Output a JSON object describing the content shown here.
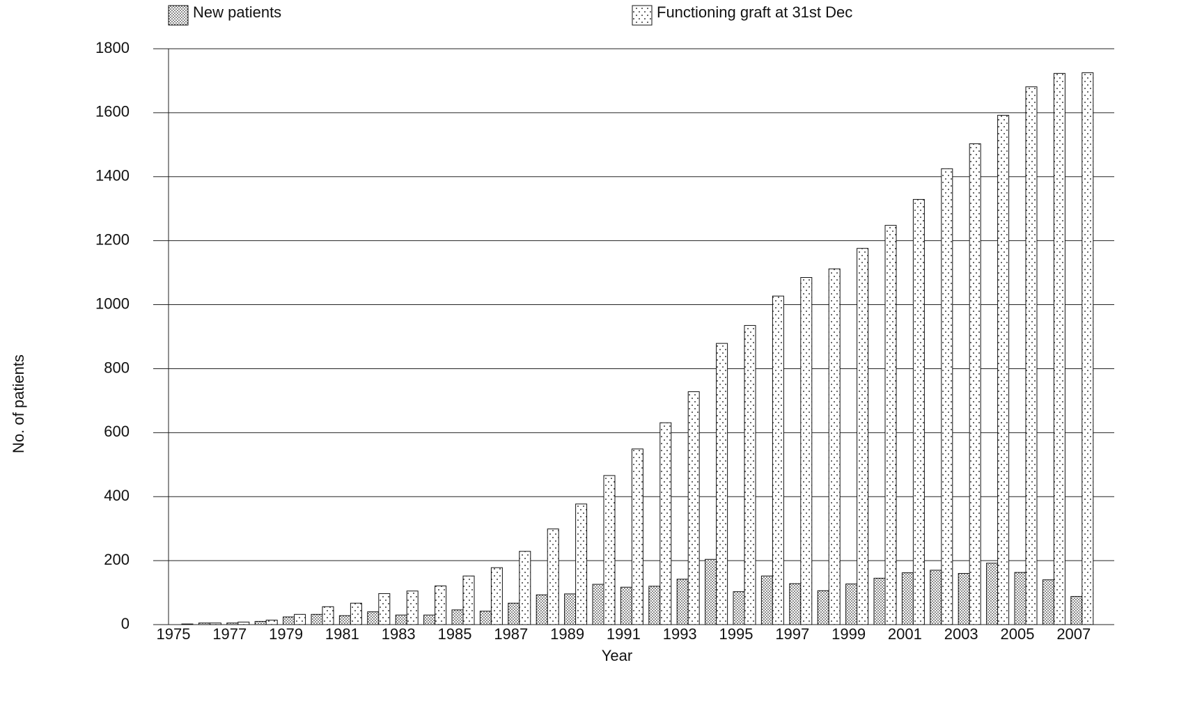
{
  "chart_data": {
    "type": "bar",
    "x_label": "Year",
    "y_label": "No. of patients",
    "categories": [
      "1975",
      null,
      "1977",
      null,
      "1979",
      null,
      "1981",
      null,
      "1983",
      null,
      "1985",
      null,
      "1987",
      null,
      "1989",
      null,
      "1991",
      null,
      "1993",
      null,
      "1995",
      null,
      "1997",
      null,
      "1999",
      null,
      "2001",
      null,
      "2003",
      null,
      "2005",
      null,
      "2007"
    ],
    "series": [
      {
        "name": "New patients",
        "color": "#000000",
        "values": [
          0,
          5,
          5,
          10,
          24,
          32,
          28,
          40,
          30,
          30,
          46,
          42,
          67,
          93,
          96,
          126,
          117,
          120,
          142,
          204,
          103,
          152,
          128,
          106,
          127,
          145,
          162,
          170,
          160,
          192,
          163,
          140,
          88
        ]
      },
      {
        "name": "Functioning graft at 31st Dec",
        "color": "#000000",
        "values": [
          2,
          5,
          8,
          14,
          32,
          56,
          67,
          97,
          105,
          121,
          152,
          178,
          229,
          299,
          377,
          466,
          549,
          631,
          728,
          879,
          935,
          1027,
          1085,
          1112,
          1176,
          1248,
          1329,
          1425,
          1503,
          1592,
          1681,
          1723,
          1725
        ]
      }
    ],
    "ylim": [
      0,
      1800
    ],
    "yticks": [
      0,
      200,
      400,
      600,
      800,
      1000,
      1200,
      1400,
      1600,
      1800
    ],
    "grid": true
  }
}
